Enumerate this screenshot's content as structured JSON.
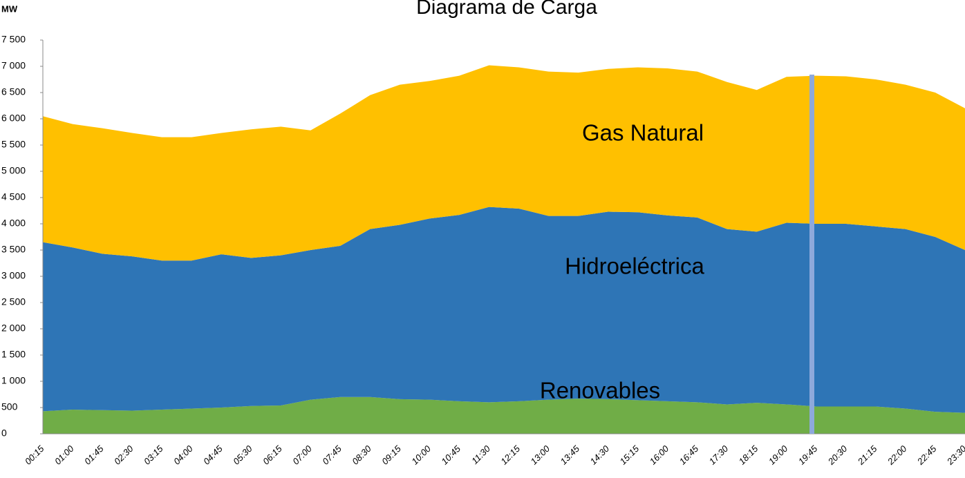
{
  "chart_data": {
    "type": "stacked_area",
    "title": "Diagrama de Carga",
    "y_label": "MW",
    "categories": [
      "00:15",
      "01:00",
      "01:45",
      "02:30",
      "03:15",
      "04:00",
      "04:45",
      "05:30",
      "06:15",
      "07:00",
      "07:45",
      "08:30",
      "09:15",
      "10:00",
      "10:45",
      "11:30",
      "12:15",
      "13:00",
      "13:45",
      "14:30",
      "15:15",
      "16:00",
      "16:45",
      "17:30",
      "18:15",
      "19:00",
      "19:45",
      "20:30",
      "21:15",
      "22:00",
      "22:45",
      "23:30"
    ],
    "series": [
      {
        "name": "Renovables",
        "color": "#70ad47",
        "values": [
          430,
          460,
          450,
          440,
          460,
          480,
          500,
          530,
          540,
          650,
          700,
          700,
          660,
          650,
          620,
          600,
          620,
          650,
          670,
          660,
          640,
          620,
          600,
          560,
          590,
          560,
          520,
          520,
          520,
          480,
          420,
          400
        ]
      },
      {
        "name": "Hidroeléctrica",
        "color": "#2e75b6",
        "values": [
          3220,
          3090,
          2980,
          2940,
          2840,
          2820,
          2920,
          2820,
          2860,
          2850,
          2880,
          3200,
          3320,
          3450,
          3550,
          3720,
          3670,
          3500,
          3480,
          3570,
          3580,
          3540,
          3520,
          3340,
          3260,
          3460,
          3480,
          3480,
          3430,
          3420,
          3330,
          3100
        ]
      },
      {
        "name": "Gas Natural",
        "color": "#ffc000",
        "values": [
          2400,
          2350,
          2390,
          2350,
          2350,
          2350,
          2310,
          2450,
          2450,
          2280,
          2520,
          2550,
          2670,
          2620,
          2650,
          2700,
          2690,
          2750,
          2730,
          2720,
          2760,
          2800,
          2780,
          2800,
          2700,
          2780,
          2820,
          2810,
          2800,
          2750,
          2750,
          2700
        ]
      }
    ],
    "ylim": [
      0,
      7500
    ],
    "yticks": [
      0,
      500,
      {
        "value": 1000,
        "label": "1 000"
      },
      {
        "value": 1500,
        "label": "1 500"
      },
      {
        "value": 2000,
        "label": "2 000"
      },
      {
        "value": 2500,
        "label": "2 500"
      },
      {
        "value": 3000,
        "label": "3 000"
      },
      {
        "value": 3500,
        "label": "3 500"
      },
      {
        "value": 4000,
        "label": "4 000"
      },
      {
        "value": 4500,
        "label": "4 500"
      },
      {
        "value": 5000,
        "label": "5 000"
      },
      {
        "value": 5500,
        "label": "5 500"
      },
      {
        "value": 6000,
        "label": "6 000"
      },
      {
        "value": 6500,
        "label": "6 500"
      },
      {
        "value": 7000,
        "label": "7 000"
      },
      {
        "value": 7500,
        "label": "7 500"
      }
    ]
  }
}
